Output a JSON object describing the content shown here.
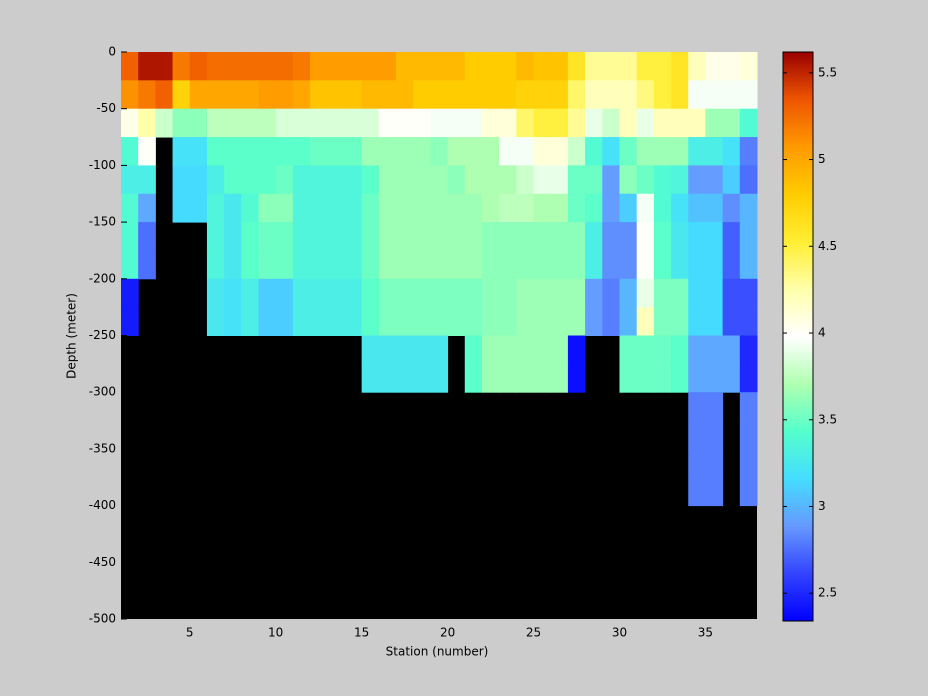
{
  "chart_data": {
    "type": "heatmap",
    "xlabel": "Station (number)",
    "ylabel": "Depth (meter)",
    "x": [
      1,
      2,
      3,
      4,
      5,
      6,
      7,
      8,
      9,
      10,
      11,
      12,
      13,
      14,
      15,
      16,
      17,
      18,
      19,
      20,
      21,
      22,
      23,
      24,
      25,
      26,
      27,
      28,
      29,
      30,
      31,
      32,
      33,
      34,
      35,
      36,
      37,
      38
    ],
    "y": [
      0,
      -25,
      -50,
      -75,
      -100,
      -125,
      -150,
      -175,
      -200,
      -225,
      -250,
      -275,
      -300,
      -325,
      -350,
      -375,
      -400
    ],
    "z": [
      [
        5.3,
        5.55,
        5.55,
        5.2,
        5.3,
        5.25,
        5.25,
        5.25,
        5.25,
        5.25,
        5.2,
        5.05,
        5.05,
        5.05,
        5.05,
        5.05,
        4.9,
        4.9,
        4.9,
        4.9,
        4.8,
        4.8,
        4.8,
        4.9,
        4.85,
        4.85,
        4.6,
        4.3,
        4.3,
        4.3,
        4.5,
        4.5,
        4.6,
        4.2,
        4.05,
        4.05,
        4.1
      ],
      [
        5.1,
        5.2,
        5.3,
        4.75,
        5.0,
        5.0,
        5.0,
        5.0,
        5.05,
        5.05,
        5.0,
        4.85,
        4.85,
        4.85,
        4.9,
        4.9,
        4.9,
        4.8,
        4.8,
        4.8,
        4.8,
        4.8,
        4.8,
        4.75,
        4.75,
        4.75,
        4.4,
        4.2,
        4.2,
        4.2,
        4.35,
        4.5,
        4.6,
        3.95,
        3.95,
        3.95,
        3.95
      ],
      [
        4.05,
        4.25,
        3.8,
        3.6,
        3.6,
        3.75,
        3.75,
        3.75,
        3.75,
        3.85,
        3.85,
        3.85,
        3.85,
        3.85,
        3.85,
        4.0,
        4.0,
        4.0,
        3.95,
        3.95,
        3.95,
        4.1,
        4.1,
        4.4,
        4.5,
        4.5,
        4.3,
        3.9,
        3.8,
        4.2,
        3.9,
        4.2,
        4.2,
        4.2,
        3.65,
        3.65,
        3.4
      ],
      [
        3.4,
        4.0,
        null,
        3.2,
        3.2,
        3.45,
        3.45,
        3.45,
        3.45,
        3.45,
        3.45,
        3.5,
        3.5,
        3.5,
        3.65,
        3.65,
        3.65,
        3.65,
        3.6,
        3.7,
        3.7,
        3.7,
        3.95,
        3.95,
        4.1,
        4.1,
        3.8,
        3.4,
        3.2,
        3.5,
        3.65,
        3.65,
        3.65,
        3.3,
        3.3,
        3.2,
        2.8
      ],
      [
        3.3,
        3.3,
        null,
        3.15,
        3.15,
        3.3,
        3.45,
        3.45,
        3.45,
        3.5,
        3.35,
        3.35,
        3.35,
        3.35,
        3.45,
        3.65,
        3.65,
        3.65,
        3.65,
        3.6,
        3.7,
        3.7,
        3.7,
        3.8,
        3.9,
        3.9,
        3.5,
        3.5,
        2.9,
        3.6,
        3.5,
        3.4,
        3.35,
        2.9,
        2.9,
        3.1,
        2.75
      ],
      [
        3.4,
        2.95,
        null,
        3.15,
        3.15,
        3.35,
        3.25,
        3.4,
        3.6,
        3.6,
        3.35,
        3.35,
        3.35,
        3.35,
        3.5,
        3.65,
        3.65,
        3.65,
        3.65,
        3.65,
        3.65,
        3.7,
        3.75,
        3.75,
        3.7,
        3.7,
        3.5,
        3.45,
        2.9,
        3.1,
        3.95,
        3.4,
        3.2,
        3.05,
        3.05,
        2.85,
        3.0
      ],
      [
        3.4,
        2.75,
        null,
        null,
        null,
        3.35,
        3.25,
        3.45,
        3.5,
        3.5,
        3.35,
        3.35,
        3.35,
        3.35,
        3.5,
        3.65,
        3.65,
        3.65,
        3.65,
        3.65,
        3.65,
        3.6,
        3.6,
        3.6,
        3.6,
        3.6,
        3.6,
        3.3,
        2.85,
        2.85,
        4.0,
        3.45,
        3.25,
        3.15,
        3.15,
        2.7,
        3.0
      ],
      [
        3.4,
        2.75,
        null,
        null,
        null,
        3.35,
        3.25,
        3.45,
        3.5,
        3.5,
        3.35,
        3.35,
        3.35,
        3.35,
        3.5,
        3.65,
        3.65,
        3.65,
        3.65,
        3.65,
        3.65,
        3.6,
        3.6,
        3.6,
        3.6,
        3.6,
        3.6,
        3.3,
        2.85,
        2.85,
        4.0,
        3.45,
        3.25,
        3.15,
        3.15,
        2.7,
        3.0
      ],
      [
        2.45,
        null,
        null,
        null,
        null,
        3.25,
        3.2,
        3.3,
        3.1,
        3.1,
        3.3,
        3.3,
        3.3,
        3.3,
        3.45,
        3.55,
        3.55,
        3.55,
        3.55,
        3.55,
        3.55,
        3.6,
        3.6,
        3.65,
        3.65,
        3.65,
        3.65,
        2.9,
        2.8,
        3.0,
        3.9,
        3.55,
        3.55,
        3.15,
        3.15,
        2.65,
        2.65
      ],
      [
        2.45,
        null,
        null,
        null,
        null,
        3.25,
        3.2,
        3.3,
        3.1,
        3.1,
        3.3,
        3.3,
        3.3,
        3.3,
        3.45,
        3.55,
        3.55,
        3.55,
        3.55,
        3.55,
        3.55,
        3.6,
        3.6,
        3.65,
        3.65,
        3.65,
        3.65,
        2.9,
        2.8,
        3.0,
        4.2,
        3.55,
        3.55,
        3.15,
        3.15,
        2.65,
        2.65
      ],
      [
        null,
        null,
        null,
        null,
        null,
        null,
        null,
        null,
        null,
        null,
        null,
        null,
        null,
        null,
        3.25,
        3.25,
        3.25,
        3.25,
        3.25,
        null,
        3.45,
        3.65,
        3.65,
        3.65,
        3.65,
        3.65,
        2.4,
        null,
        null,
        3.5,
        3.5,
        3.5,
        3.45,
        2.95,
        2.95,
        2.95,
        2.5
      ],
      [
        null,
        null,
        null,
        null,
        null,
        null,
        null,
        null,
        null,
        null,
        null,
        null,
        null,
        null,
        3.25,
        3.25,
        3.25,
        3.25,
        3.25,
        null,
        3.45,
        3.65,
        3.65,
        3.65,
        3.65,
        3.65,
        2.4,
        null,
        null,
        3.5,
        3.5,
        3.5,
        3.45,
        2.95,
        2.95,
        2.95,
        2.5
      ],
      [
        null,
        null,
        null,
        null,
        null,
        null,
        null,
        null,
        null,
        null,
        null,
        null,
        null,
        null,
        null,
        null,
        null,
        null,
        null,
        null,
        null,
        null,
        null,
        null,
        null,
        null,
        null,
        null,
        null,
        null,
        null,
        null,
        null,
        2.8,
        2.8,
        null,
        2.8
      ],
      [
        null,
        null,
        null,
        null,
        null,
        null,
        null,
        null,
        null,
        null,
        null,
        null,
        null,
        null,
        null,
        null,
        null,
        null,
        null,
        null,
        null,
        null,
        null,
        null,
        null,
        null,
        null,
        null,
        null,
        null,
        null,
        null,
        null,
        2.8,
        2.8,
        null,
        2.8
      ],
      [
        null,
        null,
        null,
        null,
        null,
        null,
        null,
        null,
        null,
        null,
        null,
        null,
        null,
        null,
        null,
        null,
        null,
        null,
        null,
        null,
        null,
        null,
        null,
        null,
        null,
        null,
        null,
        null,
        null,
        null,
        null,
        null,
        null,
        2.8,
        2.8,
        null,
        2.8
      ],
      [
        null,
        null,
        null,
        null,
        null,
        null,
        null,
        null,
        null,
        null,
        null,
        null,
        null,
        null,
        null,
        null,
        null,
        null,
        null,
        null,
        null,
        null,
        null,
        null,
        null,
        null,
        null,
        null,
        null,
        null,
        null,
        null,
        null,
        2.8,
        2.8,
        null,
        2.8
      ]
    ],
    "xlim": [
      1,
      38
    ],
    "xticks": [
      5,
      10,
      15,
      20,
      25,
      30,
      35
    ],
    "ylim": [
      -500,
      0
    ],
    "yticks": [
      0,
      -50,
      -100,
      -150,
      -200,
      -250,
      -300,
      -350,
      -400,
      -450,
      -500
    ],
    "clim": [
      2.34,
      5.62
    ],
    "cticks": [
      2.5,
      3,
      3.5,
      4,
      4.5,
      5,
      5.5
    ],
    "colormap": [
      "#0000ff",
      "#3344ff",
      "#6699ff",
      "#44ddff",
      "#55ffcc",
      "#b0ffb0",
      "#ffffff",
      "#ffffaa",
      "#ffee33",
      "#ffcc00",
      "#ff9900",
      "#ee5500",
      "#990000"
    ],
    "missing_color": "#000000"
  }
}
